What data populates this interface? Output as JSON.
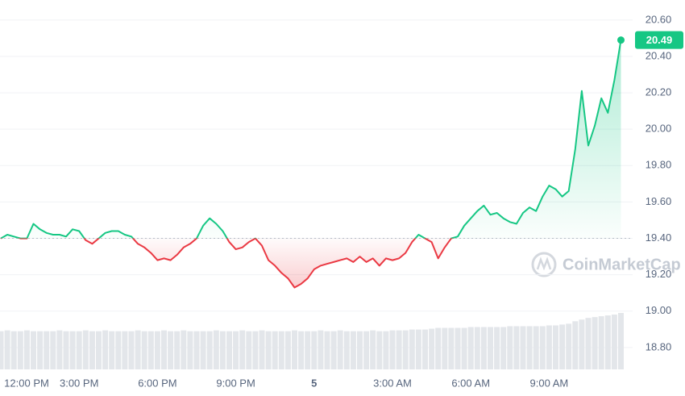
{
  "chart_data": {
    "type": "line",
    "categories": [
      "12:00 PM",
      null,
      null,
      null,
      null,
      null,
      null,
      null,
      null,
      null,
      null,
      null,
      "3:00 PM",
      null,
      null,
      null,
      null,
      null,
      null,
      null,
      null,
      null,
      null,
      null,
      "6:00 PM",
      null,
      null,
      null,
      null,
      null,
      null,
      null,
      null,
      null,
      null,
      null,
      "9:00 PM",
      null,
      null,
      null,
      null,
      null,
      null,
      null,
      null,
      null,
      null,
      null,
      "5",
      null,
      null,
      null,
      null,
      null,
      null,
      null,
      null,
      null,
      null,
      null,
      "3:00 AM",
      null,
      null,
      null,
      null,
      null,
      null,
      null,
      null,
      null,
      null,
      null,
      "6:00 AM",
      null,
      null,
      null,
      null,
      null,
      null,
      null,
      null,
      null,
      null,
      null,
      "9:00 AM",
      null,
      null,
      null,
      null,
      null,
      null,
      null,
      null,
      null,
      null,
      null
    ],
    "series": [
      {
        "name": "Price",
        "color": "#16c784",
        "below_color": "#ea3943",
        "values": [
          19.4,
          19.42,
          19.41,
          19.4,
          19.4,
          19.48,
          19.45,
          19.43,
          19.42,
          19.42,
          19.41,
          19.45,
          19.44,
          19.39,
          19.37,
          19.4,
          19.43,
          19.44,
          19.44,
          19.42,
          19.41,
          19.37,
          19.35,
          19.32,
          19.28,
          19.29,
          19.28,
          19.31,
          19.35,
          19.37,
          19.4,
          19.47,
          19.51,
          19.48,
          19.44,
          19.38,
          19.34,
          19.35,
          19.38,
          19.4,
          19.36,
          19.28,
          19.25,
          19.21,
          19.18,
          19.13,
          19.15,
          19.18,
          19.23,
          19.25,
          19.26,
          19.27,
          19.28,
          19.29,
          19.27,
          19.3,
          19.27,
          19.29,
          19.25,
          19.29,
          19.28,
          19.29,
          19.32,
          19.38,
          19.42,
          19.4,
          19.38,
          19.29,
          19.35,
          19.4,
          19.41,
          19.47,
          19.51,
          19.55,
          19.58,
          19.53,
          19.54,
          19.51,
          19.49,
          19.48,
          19.54,
          19.57,
          19.55,
          19.63,
          19.69,
          19.67,
          19.63,
          19.66,
          19.89,
          20.21,
          19.91,
          20.02,
          20.17,
          20.09,
          20.27,
          20.49
        ]
      }
    ],
    "volume": {
      "color": "#e3e6ea",
      "values": [
        46,
        47,
        46,
        46,
        47,
        46,
        46,
        46,
        46,
        47,
        46,
        46,
        46,
        47,
        46,
        46,
        47,
        46,
        46,
        46,
        46,
        47,
        46,
        46,
        46,
        47,
        46,
        46,
        47,
        46,
        46,
        46,
        46,
        47,
        46,
        46,
        46,
        47,
        46,
        46,
        47,
        46,
        46,
        46,
        46,
        47,
        46,
        46,
        46,
        47,
        46,
        46,
        47,
        46,
        46,
        46,
        46,
        47,
        46,
        46,
        47,
        47,
        47,
        48,
        48,
        48,
        49,
        50,
        50,
        50,
        50,
        50,
        51,
        51,
        51,
        51,
        51,
        51,
        52,
        52,
        52,
        52,
        52,
        52,
        53,
        53,
        54,
        55,
        58,
        60,
        62,
        63,
        64,
        65,
        66,
        68
      ]
    },
    "baseline": 19.4,
    "ylim": [
      18.68,
      20.71
    ],
    "yticks": [
      {
        "value": 18.8,
        "label": "18.80"
      },
      {
        "value": 19.0,
        "label": "19.00"
      },
      {
        "value": 19.2,
        "label": "19.20"
      },
      {
        "value": 19.4,
        "label": "19.40"
      },
      {
        "value": 19.6,
        "label": "19.60"
      },
      {
        "value": 19.8,
        "label": "19.80"
      },
      {
        "value": 20.0,
        "label": "20.00"
      },
      {
        "value": 20.2,
        "label": "20.20"
      },
      {
        "value": 20.4,
        "label": "20.40"
      },
      {
        "value": 20.6,
        "label": "20.60"
      }
    ],
    "grid": true,
    "watermark": "CoinMarketCap"
  }
}
